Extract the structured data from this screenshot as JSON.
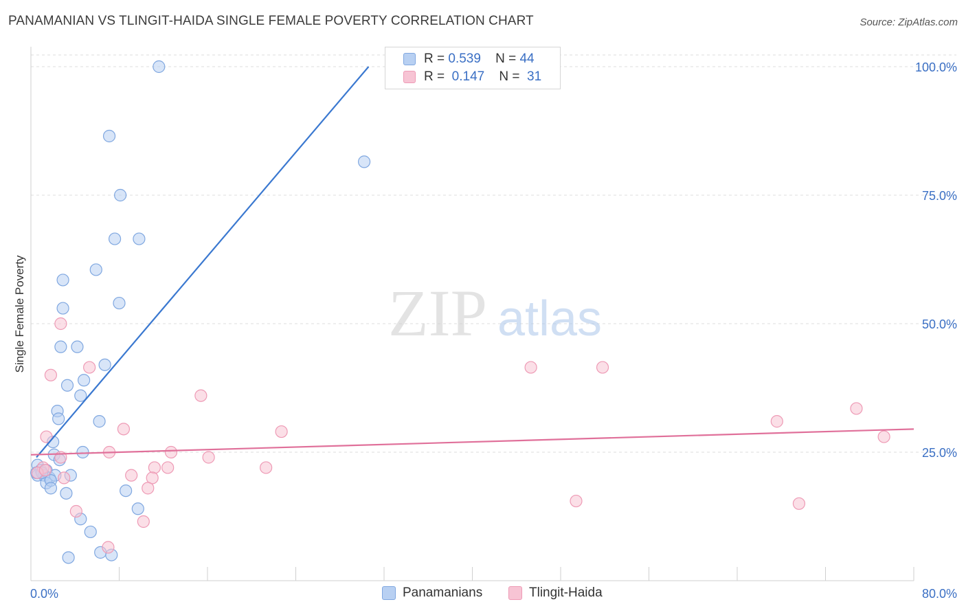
{
  "title": "PANAMANIAN VS TLINGIT-HAIDA SINGLE FEMALE POVERTY CORRELATION CHART",
  "source": "Source: ZipAtlas.com",
  "watermark": {
    "zip": "ZIP",
    "atlas": "atlas"
  },
  "colors": {
    "blue_fill": "#b8d0f2",
    "blue_stroke": "#7fa7e0",
    "blue_line": "#3a78d0",
    "pink_fill": "#f7c4d4",
    "pink_stroke": "#ee9ab5",
    "pink_line": "#e0709a",
    "tick_label": "#3a6fc4",
    "grid": "#dddddd"
  },
  "legend": {
    "rows": [
      {
        "r_label": "R =",
        "r_value": "0.539",
        "n_label": "N =",
        "n_value": "44"
      },
      {
        "r_label": "R =",
        "r_value": "0.147",
        "n_label": "N =",
        "n_value": "31"
      }
    ]
  },
  "bottom_legend": {
    "blue": "Panamanians",
    "pink": "Tlingit-Haida"
  },
  "chart_data": {
    "type": "scatter",
    "xlabel": "",
    "ylabel": "Single Female Poverty",
    "xlim": [
      0,
      80
    ],
    "ylim": [
      0,
      100
    ],
    "x_tick_labels": [
      "0.0%",
      "80.0%"
    ],
    "y_tick_labels": [
      "25.0%",
      "50.0%",
      "75.0%",
      "100.0%"
    ],
    "y_ticks": [
      25,
      50,
      75,
      100
    ],
    "grid": true,
    "legend_position": "top-center",
    "series": [
      {
        "name": "Panamanians",
        "color": "blue",
        "trend": {
          "x": [
            0.5,
            30.6
          ],
          "y": [
            24.0,
            100.0
          ]
        },
        "points": [
          [
            11.6,
            100.0
          ],
          [
            7.1,
            86.5
          ],
          [
            30.2,
            81.5
          ],
          [
            8.1,
            75.0
          ],
          [
            7.6,
            66.5
          ],
          [
            9.8,
            66.5
          ],
          [
            5.9,
            60.5
          ],
          [
            2.9,
            58.5
          ],
          [
            2.9,
            53.0
          ],
          [
            8.0,
            54.0
          ],
          [
            2.7,
            45.5
          ],
          [
            4.2,
            45.5
          ],
          [
            6.7,
            42.0
          ],
          [
            4.8,
            39.0
          ],
          [
            3.3,
            38.0
          ],
          [
            4.5,
            36.0
          ],
          [
            2.4,
            33.0
          ],
          [
            2.5,
            31.5
          ],
          [
            6.2,
            31.0
          ],
          [
            2.0,
            27.0
          ],
          [
            2.1,
            24.5
          ],
          [
            2.6,
            23.5
          ],
          [
            4.7,
            25.0
          ],
          [
            0.6,
            22.5
          ],
          [
            0.9,
            21.5
          ],
          [
            1.4,
            21.5
          ],
          [
            0.6,
            20.5
          ],
          [
            1.2,
            20.5
          ],
          [
            1.7,
            20.0
          ],
          [
            2.2,
            20.5
          ],
          [
            3.6,
            20.5
          ],
          [
            1.4,
            19.0
          ],
          [
            1.8,
            19.5
          ],
          [
            1.8,
            18.0
          ],
          [
            8.6,
            17.5
          ],
          [
            3.2,
            17.0
          ],
          [
            9.7,
            14.0
          ],
          [
            4.5,
            12.0
          ],
          [
            5.4,
            9.5
          ],
          [
            6.3,
            5.5
          ],
          [
            7.3,
            5.0
          ],
          [
            3.4,
            4.5
          ],
          [
            1.0,
            21.0
          ],
          [
            0.5,
            21.0
          ]
        ]
      },
      {
        "name": "Tlingit-Haida",
        "color": "pink",
        "trend": {
          "x": [
            0.0,
            80.0
          ],
          "y": [
            24.5,
            29.5
          ]
        },
        "points": [
          [
            2.7,
            50.0
          ],
          [
            1.8,
            40.0
          ],
          [
            5.3,
            41.5
          ],
          [
            45.3,
            41.5
          ],
          [
            51.8,
            41.5
          ],
          [
            15.4,
            36.0
          ],
          [
            74.8,
            33.5
          ],
          [
            67.6,
            31.0
          ],
          [
            8.4,
            29.5
          ],
          [
            22.7,
            29.0
          ],
          [
            77.3,
            28.0
          ],
          [
            1.4,
            28.0
          ],
          [
            7.1,
            25.0
          ],
          [
            12.7,
            25.0
          ],
          [
            16.1,
            24.0
          ],
          [
            2.7,
            24.0
          ],
          [
            11.2,
            22.0
          ],
          [
            12.4,
            22.0
          ],
          [
            21.3,
            22.0
          ],
          [
            9.1,
            20.5
          ],
          [
            11.0,
            20.0
          ],
          [
            3.0,
            20.0
          ],
          [
            10.6,
            18.0
          ],
          [
            49.4,
            15.5
          ],
          [
            69.6,
            15.0
          ],
          [
            4.1,
            13.5
          ],
          [
            10.2,
            11.5
          ],
          [
            7.0,
            6.5
          ],
          [
            1.1,
            22.0
          ],
          [
            0.6,
            21.0
          ],
          [
            1.3,
            21.5
          ]
        ]
      }
    ]
  }
}
